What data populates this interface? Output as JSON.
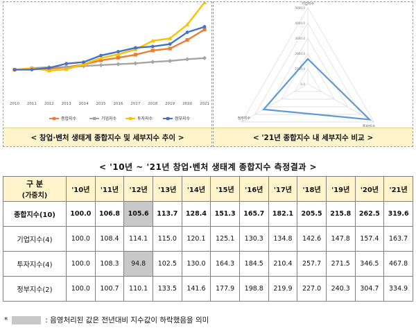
{
  "left_panel": {
    "caption": "< 창업·벤처 생태계 종합지수 및 세부지수 추이 >"
  },
  "right_panel": {
    "caption": "< '21년 종합지수 내 세부지수 비교 >"
  },
  "chart_data": [
    {
      "type": "line",
      "title": "창업·벤처 생태계 종합지수 및 세부지수 추이",
      "x": [
        "2010",
        "2011",
        "2012",
        "2013",
        "2014",
        "2015",
        "2016",
        "2017",
        "2018",
        "2019",
        "2020",
        "2021"
      ],
      "ylim": [
        0,
        500
      ],
      "grid": false,
      "legend_position": "bottom",
      "series": [
        {
          "name": "종합지수",
          "color": "#ed7d31",
          "marker": "square",
          "values": [
            100.0,
            106.8,
            105.6,
            113.7,
            128.4,
            151.3,
            165.7,
            182.1,
            205.5,
            215.8,
            262.5,
            319.6
          ]
        },
        {
          "name": "기업지수",
          "color": "#a5a5a5",
          "marker": "diamond",
          "values": [
            100.0,
            108.4,
            114.1,
            115.0,
            120.1,
            125.1,
            130.3,
            134.8,
            142.6,
            147.8,
            157.4,
            163.7
          ]
        },
        {
          "name": "투자지수",
          "color": "#ffc000",
          "marker": "triangle",
          "values": [
            100.0,
            108.3,
            94.8,
            102.5,
            130.0,
            164.3,
            184.5,
            210.4,
            257.7,
            271.5,
            346.5,
            467.8
          ]
        },
        {
          "name": "정부지수",
          "color": "#4472c4",
          "marker": "x",
          "values": [
            100.0,
            100.7,
            110.1,
            133.5,
            141.6,
            177.9,
            198.8,
            219.9,
            227.0,
            240.3,
            304.7,
            334.9
          ]
        }
      ]
    },
    {
      "type": "radar",
      "title": "'21년 종합지수 내 세부지수 비교",
      "axes": [
        "기업지수",
        "투자지수",
        "정부지수"
      ],
      "ticks": [
        "0.0",
        "1000.0",
        "2000.0",
        "3000.0",
        "4000.0",
        "5000.0"
      ],
      "range": [
        0,
        5000
      ],
      "color": "#5b9bd5",
      "values": [
        1637,
        4678,
        3349
      ]
    }
  ],
  "results_table": {
    "title": "< '10년 ~ '21년 창업·벤처 생태계 종합지수 측정결과 >",
    "header_line1": "구 분",
    "header_line2": "(가중치)",
    "columns": [
      "'10년",
      "'11년",
      "'12년",
      "'13년",
      "'14년",
      "'15년",
      "'16년",
      "'17년",
      "'18년",
      "'19년",
      "'20년",
      "'21년"
    ],
    "rows": [
      {
        "label": "종합지수(10)",
        "values": [
          "100.0",
          "106.8",
          "105.6",
          "113.7",
          "128.4",
          "151.3",
          "165.7",
          "182.1",
          "205.5",
          "215.8",
          "262.5",
          "319.6"
        ],
        "shaded": [
          2
        ]
      },
      {
        "label": "기업지수(4)",
        "values": [
          "100.0",
          "108.4",
          "114.1",
          "115.0",
          "120.1",
          "125.1",
          "130.3",
          "134.8",
          "142.6",
          "147.8",
          "157.4",
          "163.7"
        ],
        "shaded": []
      },
      {
        "label": "투자지수(4)",
        "values": [
          "100.0",
          "108.3",
          "94.8",
          "102.5",
          "130.0",
          "164.3",
          "184.5",
          "210.4",
          "257.7",
          "271.5",
          "346.5",
          "467.8"
        ],
        "shaded": [
          2
        ]
      },
      {
        "label": "정부지수(2)",
        "values": [
          "100.0",
          "100.7",
          "110.1",
          "133.5",
          "141.6",
          "177.9",
          "198.8",
          "219.9",
          "227.0",
          "240.3",
          "304.7",
          "334.9"
        ],
        "shaded": []
      }
    ]
  },
  "footnote": {
    "star": "*",
    "text": ": 음영처리된 값은 전년대비 지수값이 하락했음을 의미"
  }
}
